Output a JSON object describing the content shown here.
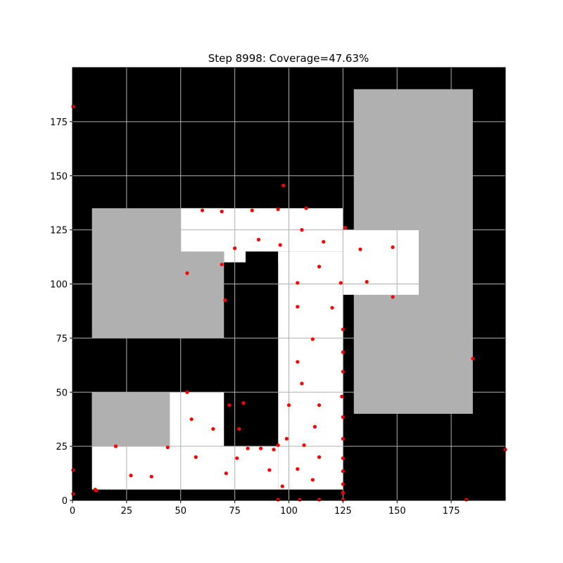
{
  "chart_data": {
    "type": "scatter",
    "title": "Step 8998: Coverage=47.63%",
    "xlabel": "",
    "ylabel": "",
    "xlim": [
      0,
      200
    ],
    "ylim": [
      0,
      200
    ],
    "xticks": [
      0,
      25,
      50,
      75,
      100,
      125,
      150,
      175
    ],
    "yticks": [
      0,
      25,
      50,
      75,
      100,
      125,
      150,
      175
    ],
    "grid": true,
    "background": "occupancy grid map",
    "colors": {
      "obstacle": "#000000",
      "free_unexplored": "#b0b0b0",
      "covered": "#ffffff",
      "points": "#ff0000",
      "grid": "#b0b0b0"
    },
    "map_regions": [
      {
        "kind": "unexplored",
        "x": [
          9,
          70
        ],
        "y": [
          75,
          135
        ]
      },
      {
        "kind": "covered",
        "x": [
          50,
          125
        ],
        "y": [
          115,
          135
        ]
      },
      {
        "kind": "covered",
        "x": [
          70,
          80
        ],
        "y": [
          75,
          120
        ]
      },
      {
        "kind": "covered",
        "x": [
          95,
          125
        ],
        "y": [
          5,
          115
        ]
      },
      {
        "kind": "covered",
        "x": [
          9,
          95
        ],
        "y": [
          5,
          50
        ]
      },
      {
        "kind": "unexplored",
        "x": [
          9,
          45
        ],
        "y": [
          25,
          50
        ]
      },
      {
        "kind": "unexplored",
        "x": [
          130,
          185
        ],
        "y": [
          40,
          190
        ]
      },
      {
        "kind": "covered",
        "x": [
          125,
          160
        ],
        "y": [
          95,
          125
        ]
      },
      {
        "kind": "obstacle",
        "x": [
          70,
          95
        ],
        "y": [
          25,
          110
        ]
      },
      {
        "kind": "obstacle",
        "x": [
          79,
          95
        ],
        "y": [
          25,
          50
        ]
      }
    ],
    "points": [
      {
        "x": 0.3,
        "y": 182
      },
      {
        "x": 97.5,
        "y": 145.5
      },
      {
        "x": 60,
        "y": 134
      },
      {
        "x": 69,
        "y": 133.5
      },
      {
        "x": 83,
        "y": 134
      },
      {
        "x": 95,
        "y": 134.5
      },
      {
        "x": 108,
        "y": 135
      },
      {
        "x": 106,
        "y": 125
      },
      {
        "x": 126,
        "y": 126
      },
      {
        "x": 86,
        "y": 120.5
      },
      {
        "x": 75,
        "y": 116.5
      },
      {
        "x": 96,
        "y": 118
      },
      {
        "x": 116,
        "y": 119.5
      },
      {
        "x": 133,
        "y": 116
      },
      {
        "x": 148,
        "y": 117
      },
      {
        "x": 69,
        "y": 109
      },
      {
        "x": 53,
        "y": 105
      },
      {
        "x": 114,
        "y": 108
      },
      {
        "x": 104,
        "y": 100.5
      },
      {
        "x": 124,
        "y": 100.5
      },
      {
        "x": 136,
        "y": 101
      },
      {
        "x": 148,
        "y": 94
      },
      {
        "x": 70.5,
        "y": 92.5
      },
      {
        "x": 104,
        "y": 89.5
      },
      {
        "x": 120,
        "y": 89
      },
      {
        "x": 125,
        "y": 79
      },
      {
        "x": 111,
        "y": 74.5
      },
      {
        "x": 125,
        "y": 68.5
      },
      {
        "x": 104,
        "y": 64
      },
      {
        "x": 125,
        "y": 59.5
      },
      {
        "x": 106,
        "y": 54
      },
      {
        "x": 53,
        "y": 50
      },
      {
        "x": 124.5,
        "y": 48
      },
      {
        "x": 72.5,
        "y": 44
      },
      {
        "x": 79,
        "y": 45
      },
      {
        "x": 100,
        "y": 44
      },
      {
        "x": 114,
        "y": 44
      },
      {
        "x": 55,
        "y": 37.5
      },
      {
        "x": 125,
        "y": 38.5
      },
      {
        "x": 65,
        "y": 33
      },
      {
        "x": 77,
        "y": 33
      },
      {
        "x": 112,
        "y": 34
      },
      {
        "x": 99,
        "y": 28.5
      },
      {
        "x": 125,
        "y": 28.5
      },
      {
        "x": 20,
        "y": 25
      },
      {
        "x": 44,
        "y": 24.5
      },
      {
        "x": 81,
        "y": 24
      },
      {
        "x": 87,
        "y": 24
      },
      {
        "x": 93,
        "y": 23.5
      },
      {
        "x": 95,
        "y": 25.5
      },
      {
        "x": 107,
        "y": 25.5
      },
      {
        "x": 57,
        "y": 20
      },
      {
        "x": 76,
        "y": 19.5
      },
      {
        "x": 114,
        "y": 20
      },
      {
        "x": 125,
        "y": 19.5
      },
      {
        "x": 0.3,
        "y": 14
      },
      {
        "x": 91,
        "y": 14
      },
      {
        "x": 104,
        "y": 14.5
      },
      {
        "x": 125,
        "y": 13.5
      },
      {
        "x": 27,
        "y": 11.5
      },
      {
        "x": 36.5,
        "y": 11
      },
      {
        "x": 71,
        "y": 12.5
      },
      {
        "x": 111,
        "y": 9.5
      },
      {
        "x": 125,
        "y": 7.5
      },
      {
        "x": 97,
        "y": 6.5
      },
      {
        "x": 10.5,
        "y": 5
      },
      {
        "x": 11,
        "y": 4.5
      },
      {
        "x": 125,
        "y": 3.5
      },
      {
        "x": 0.3,
        "y": 3
      },
      {
        "x": 95,
        "y": 0.3
      },
      {
        "x": 105,
        "y": 0.3
      },
      {
        "x": 114,
        "y": 0.3
      },
      {
        "x": 125,
        "y": 0.3
      },
      {
        "x": 182,
        "y": 0.3
      },
      {
        "x": 185,
        "y": 65.5
      },
      {
        "x": 200,
        "y": 23.5
      }
    ]
  }
}
